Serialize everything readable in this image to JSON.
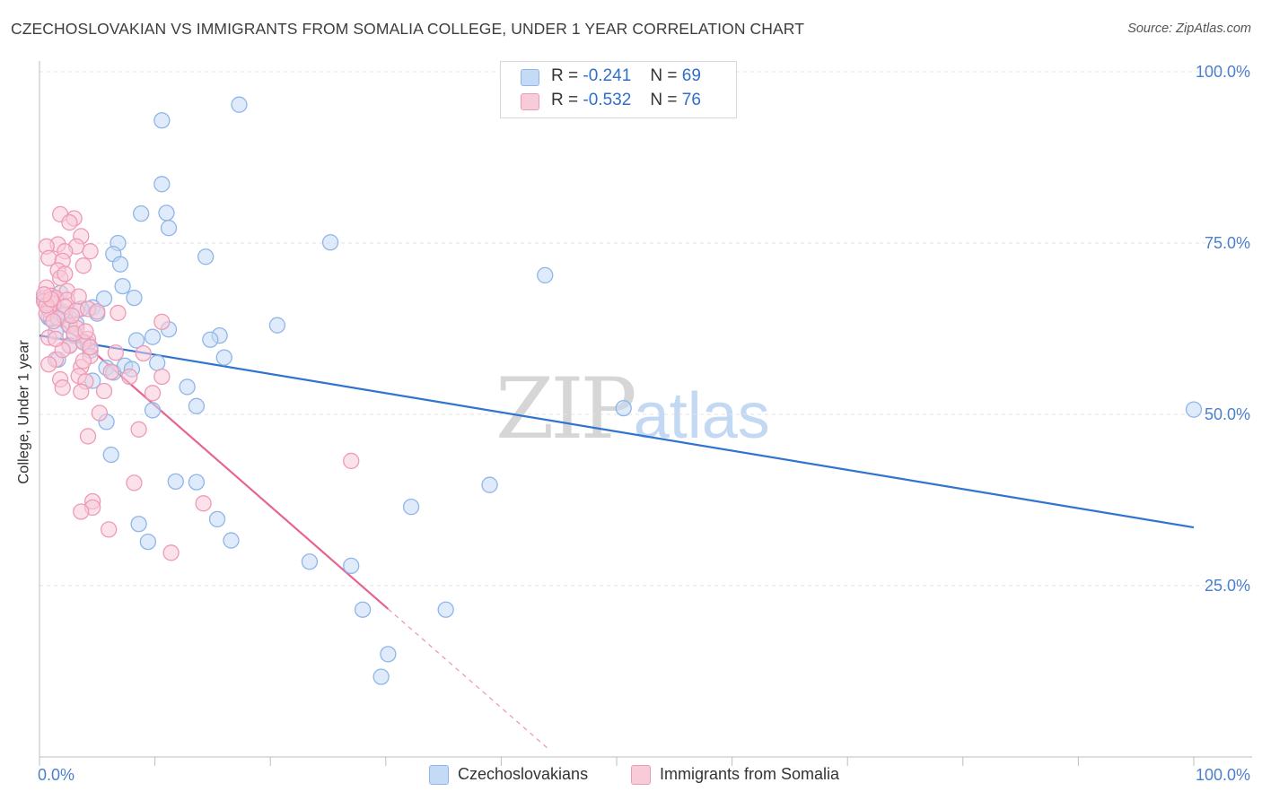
{
  "header": {
    "title": "CZECHOSLOVAKIAN VS IMMIGRANTS FROM SOMALIA COLLEGE, UNDER 1 YEAR CORRELATION CHART",
    "source": "Source: ZipAtlas.com"
  },
  "watermark": {
    "zip": "ZIP",
    "atlas": "atlas"
  },
  "legend": {
    "r_label": "R =",
    "n_label": "N =",
    "series": [
      {
        "name": "Czechoslovakians",
        "r": "-0.241",
        "n": "69",
        "color": "#8fb6e8",
        "fill": "#c5dbf5"
      },
      {
        "name": "Immigrants from Somalia",
        "r": "-0.532",
        "n": "76",
        "color": "#ef9ab4",
        "fill": "#f8cbd8"
      }
    ]
  },
  "colors": {
    "blue_line": "#2f74cf",
    "pink_line": "#e8648f",
    "axis_text": "#4a7fcf",
    "grid": "#e3e3e3"
  },
  "chart_data": {
    "type": "scatter",
    "title": "CZECHOSLOVAKIAN VS IMMIGRANTS FROM SOMALIA COLLEGE, UNDER 1 YEAR CORRELATION CHART",
    "xlabel": "",
    "ylabel": "College, Under 1 year",
    "xlim": [
      0,
      100
    ],
    "ylim": [
      0,
      100
    ],
    "x_tick_labels": [
      "0.0%",
      "100.0%"
    ],
    "y_ticks": [
      25,
      50,
      75,
      100
    ],
    "y_tick_labels": [
      "25.0%",
      "50.0%",
      "75.0%",
      "100.0%"
    ],
    "series": [
      {
        "name": "Czechoslovakians",
        "trend": {
          "x": [
            0,
            100
          ],
          "y": [
            61.5,
            33.5
          ]
        },
        "points": [
          [
            17.3,
            95.2
          ],
          [
            10.6,
            92.9
          ],
          [
            10.6,
            83.6
          ],
          [
            11.0,
            79.4
          ],
          [
            8.8,
            79.3
          ],
          [
            11.2,
            77.2
          ],
          [
            25.2,
            75.1
          ],
          [
            6.8,
            75.0
          ],
          [
            6.4,
            73.4
          ],
          [
            14.4,
            73.0
          ],
          [
            7.0,
            71.9
          ],
          [
            43.8,
            70.3
          ],
          [
            7.2,
            68.7
          ],
          [
            1.8,
            67.7
          ],
          [
            8.2,
            67.0
          ],
          [
            5.6,
            66.9
          ],
          [
            0.6,
            66.2
          ],
          [
            1.2,
            65.8
          ],
          [
            4.6,
            65.6
          ],
          [
            3.6,
            65.4
          ],
          [
            2.2,
            64.5
          ],
          [
            5.0,
            64.7
          ],
          [
            0.8,
            64.1
          ],
          [
            20.6,
            63.0
          ],
          [
            2.6,
            62.9
          ],
          [
            3.2,
            63.2
          ],
          [
            11.2,
            62.4
          ],
          [
            1.4,
            62.0
          ],
          [
            9.8,
            61.3
          ],
          [
            15.6,
            61.5
          ],
          [
            8.4,
            60.8
          ],
          [
            14.8,
            60.9
          ],
          [
            3.8,
            60.6
          ],
          [
            4.2,
            60.3
          ],
          [
            2.6,
            60.1
          ],
          [
            4.4,
            59.3
          ],
          [
            16.0,
            58.3
          ],
          [
            1.6,
            58.0
          ],
          [
            5.8,
            56.8
          ],
          [
            6.4,
            56.1
          ],
          [
            7.4,
            57.1
          ],
          [
            8.0,
            56.6
          ],
          [
            10.2,
            57.5
          ],
          [
            12.8,
            54.0
          ],
          [
            4.6,
            54.9
          ],
          [
            13.6,
            51.2
          ],
          [
            9.8,
            50.6
          ],
          [
            50.6,
            50.9
          ],
          [
            5.8,
            48.9
          ],
          [
            6.2,
            44.1
          ],
          [
            39.0,
            39.7
          ],
          [
            11.8,
            40.2
          ],
          [
            13.6,
            40.1
          ],
          [
            32.2,
            36.5
          ],
          [
            15.4,
            34.7
          ],
          [
            8.6,
            34.0
          ],
          [
            16.6,
            31.6
          ],
          [
            9.4,
            31.4
          ],
          [
            23.4,
            28.5
          ],
          [
            27.0,
            27.9
          ],
          [
            28.0,
            21.5
          ],
          [
            35.2,
            21.5
          ],
          [
            30.2,
            15.0
          ],
          [
            29.6,
            11.7
          ],
          [
            100.0,
            50.7
          ],
          [
            1.0,
            63.9
          ],
          [
            2.0,
            65.0
          ],
          [
            3.0,
            61.5
          ],
          [
            0.4,
            67.0
          ]
        ]
      },
      {
        "name": "Immigrants from Somalia",
        "trend": {
          "x": [
            0,
            30.2
          ],
          "y": [
            66.0,
            21.6
          ]
        },
        "trend_dashed": {
          "x": [
            30.2,
            44.0
          ],
          "y": [
            21.6,
            1.3
          ]
        },
        "points": [
          [
            1.8,
            79.2
          ],
          [
            3.0,
            78.6
          ],
          [
            2.6,
            78.0
          ],
          [
            3.6,
            76.0
          ],
          [
            1.6,
            74.8
          ],
          [
            0.6,
            74.5
          ],
          [
            3.2,
            74.5
          ],
          [
            2.2,
            73.8
          ],
          [
            4.4,
            73.8
          ],
          [
            0.8,
            72.8
          ],
          [
            2.0,
            72.4
          ],
          [
            3.8,
            71.7
          ],
          [
            1.6,
            71.0
          ],
          [
            1.8,
            69.9
          ],
          [
            0.6,
            68.5
          ],
          [
            2.4,
            68.0
          ],
          [
            1.0,
            67.3
          ],
          [
            1.4,
            67.0
          ],
          [
            2.4,
            66.7
          ],
          [
            0.4,
            66.5
          ],
          [
            1.2,
            66.2
          ],
          [
            2.2,
            65.7
          ],
          [
            0.8,
            65.3
          ],
          [
            3.2,
            65.2
          ],
          [
            4.2,
            65.4
          ],
          [
            6.8,
            64.8
          ],
          [
            0.6,
            64.7
          ],
          [
            1.6,
            64.0
          ],
          [
            10.6,
            63.5
          ],
          [
            2.6,
            63.0
          ],
          [
            3.2,
            62.6
          ],
          [
            0.8,
            61.2
          ],
          [
            4.2,
            61.0
          ],
          [
            2.6,
            60.0
          ],
          [
            3.8,
            60.5
          ],
          [
            9.0,
            58.9
          ],
          [
            4.4,
            58.5
          ],
          [
            1.4,
            58.0
          ],
          [
            0.8,
            57.3
          ],
          [
            3.6,
            56.9
          ],
          [
            6.2,
            56.2
          ],
          [
            3.4,
            55.6
          ],
          [
            7.8,
            55.5
          ],
          [
            10.6,
            55.5
          ],
          [
            1.8,
            55.1
          ],
          [
            4.0,
            54.8
          ],
          [
            2.0,
            53.9
          ],
          [
            5.6,
            53.4
          ],
          [
            3.6,
            53.3
          ],
          [
            9.8,
            53.1
          ],
          [
            5.2,
            50.2
          ],
          [
            8.6,
            47.8
          ],
          [
            4.2,
            46.8
          ],
          [
            27.0,
            43.2
          ],
          [
            8.2,
            40.0
          ],
          [
            4.6,
            37.3
          ],
          [
            14.2,
            37.0
          ],
          [
            4.6,
            36.4
          ],
          [
            3.6,
            35.8
          ],
          [
            6.0,
            33.2
          ],
          [
            11.4,
            29.8
          ],
          [
            4.4,
            59.8
          ],
          [
            3.0,
            61.8
          ],
          [
            1.2,
            63.6
          ],
          [
            5.0,
            65.0
          ],
          [
            2.0,
            59.4
          ],
          [
            0.6,
            65.9
          ],
          [
            1.0,
            66.8
          ],
          [
            2.8,
            64.4
          ],
          [
            4.0,
            62.1
          ],
          [
            3.4,
            67.2
          ],
          [
            2.2,
            70.5
          ],
          [
            0.4,
            67.5
          ],
          [
            1.4,
            61.0
          ],
          [
            3.8,
            57.8
          ],
          [
            6.6,
            59.0
          ]
        ]
      }
    ]
  }
}
